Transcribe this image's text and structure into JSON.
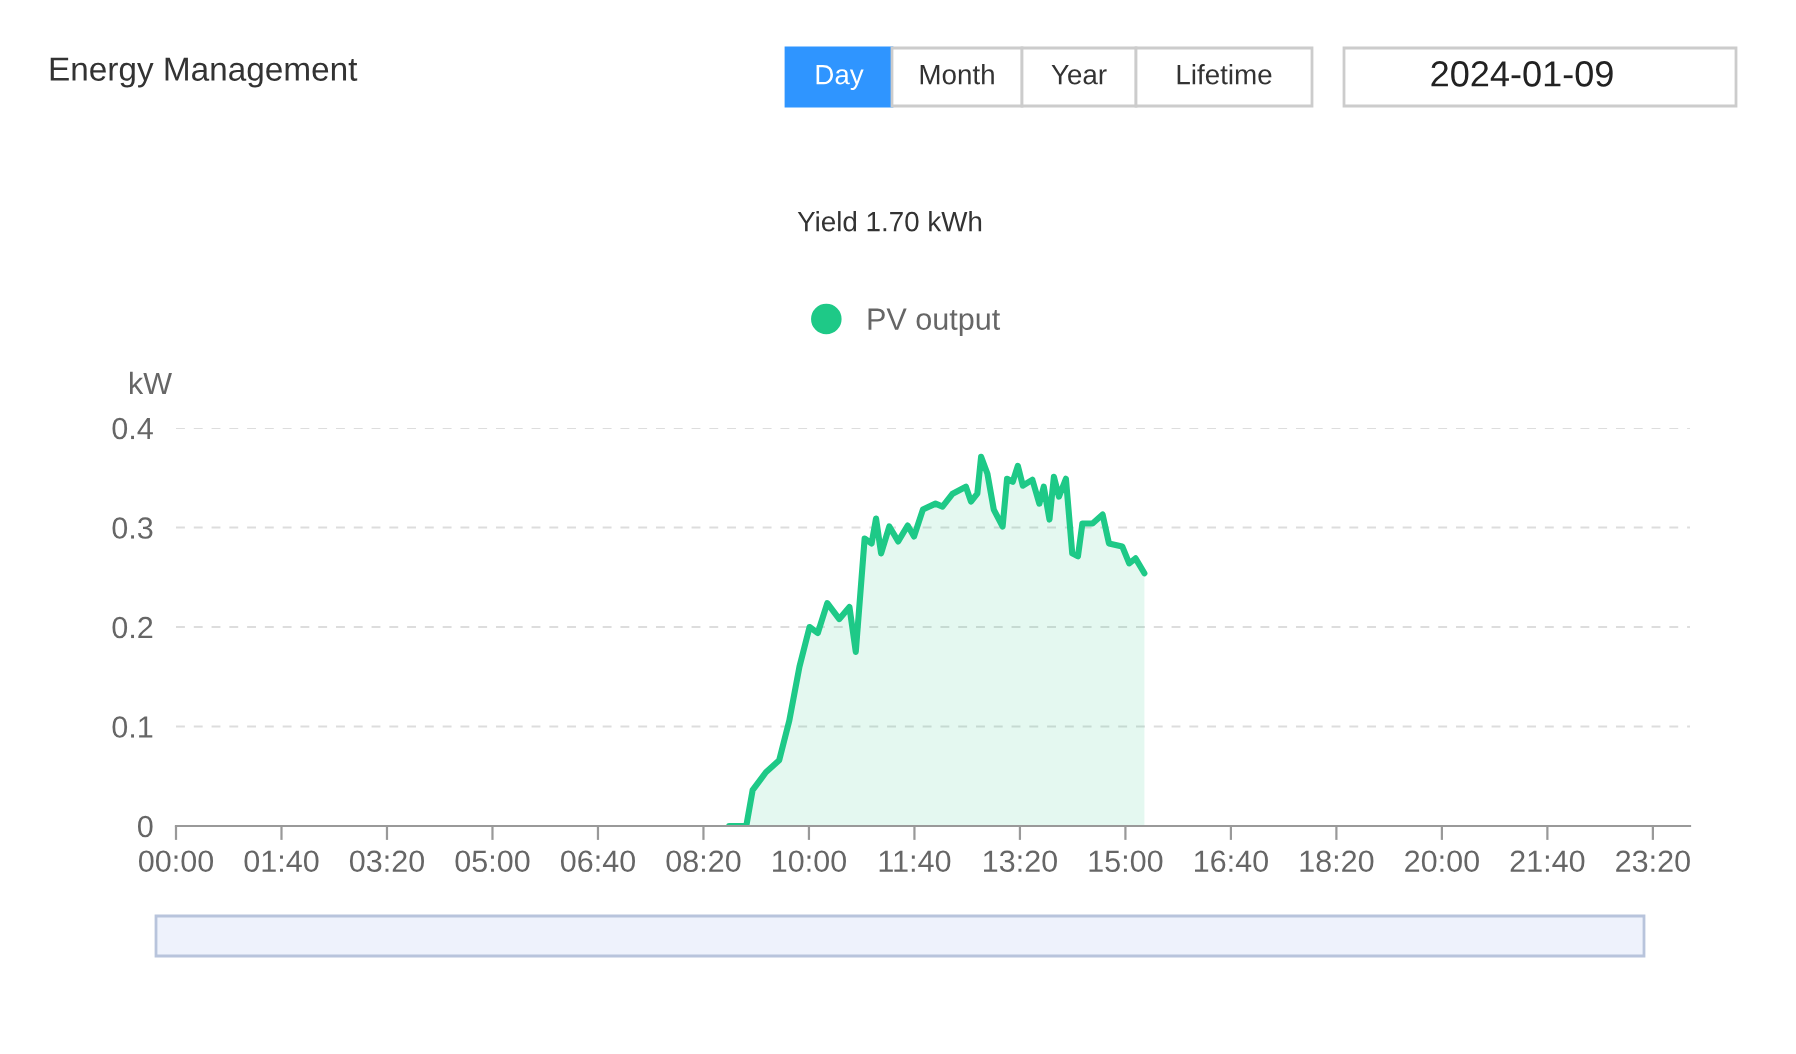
{
  "chart_data": {
    "type": "area",
    "title": "Energy Management",
    "ylabel": "kW",
    "annotations": [
      "Day",
      "Month",
      "Year",
      "Lifetime",
      "2024-01-09",
      "Yield 1.70 kWh"
    ],
    "legend": "top",
    "grid": "y",
    "line_style": "solid",
    "marker": "none",
    "xlim": [
      0,
      23.92
    ],
    "ylim": [
      0,
      0.4
    ],
    "yticks": [
      0,
      0.1,
      0.2,
      0.3,
      0.4
    ],
    "xticks": [
      {
        "value": 0,
        "label": "00:00"
      },
      {
        "value": 1.6667,
        "label": "01:40"
      },
      {
        "value": 3.3333,
        "label": "03:20"
      },
      {
        "value": 5,
        "label": "05:00"
      },
      {
        "value": 6.6667,
        "label": "06:40"
      },
      {
        "value": 8.3333,
        "label": "08:20"
      },
      {
        "value": 10,
        "label": "10:00"
      },
      {
        "value": 11.6667,
        "label": "11:40"
      },
      {
        "value": 13.3333,
        "label": "13:20"
      },
      {
        "value": 15,
        "label": "15:00"
      },
      {
        "value": 16.6667,
        "label": "16:40"
      },
      {
        "value": 18.3333,
        "label": "18:20"
      },
      {
        "value": 20,
        "label": "20:00"
      },
      {
        "value": 21.6667,
        "label": "21:40"
      },
      {
        "value": 23.3333,
        "label": "23:20"
      }
    ],
    "series": [
      {
        "name": "PV output",
        "color": "#1ec987",
        "x": [
          8.74,
          9.01,
          9.11,
          9.32,
          9.53,
          9.69,
          9.85,
          10.01,
          10.14,
          10.29,
          10.48,
          10.64,
          10.74,
          10.88,
          10.99,
          11.06,
          11.14,
          11.27,
          11.41,
          11.56,
          11.66,
          11.8,
          12.0,
          12.11,
          12.27,
          12.48,
          12.56,
          12.66,
          12.72,
          12.82,
          12.92,
          13.06,
          13.13,
          13.22,
          13.3,
          13.38,
          13.53,
          13.64,
          13.71,
          13.8,
          13.87,
          13.95,
          14.06,
          14.16,
          14.25,
          14.32,
          14.48,
          14.64,
          14.74,
          14.95,
          15.06,
          15.16,
          15.3
        ],
        "values": [
          0,
          0,
          0.036,
          0.054,
          0.066,
          0.106,
          0.16,
          0.2,
          0.194,
          0.224,
          0.208,
          0.22,
          0.175,
          0.289,
          0.284,
          0.309,
          0.274,
          0.301,
          0.286,
          0.302,
          0.291,
          0.318,
          0.324,
          0.321,
          0.334,
          0.341,
          0.326,
          0.334,
          0.371,
          0.354,
          0.318,
          0.301,
          0.349,
          0.346,
          0.362,
          0.342,
          0.348,
          0.324,
          0.341,
          0.308,
          0.351,
          0.331,
          0.349,
          0.274,
          0.271,
          0.304,
          0.304,
          0.313,
          0.284,
          0.281,
          0.264,
          0.269,
          0.254
        ]
      }
    ]
  }
}
